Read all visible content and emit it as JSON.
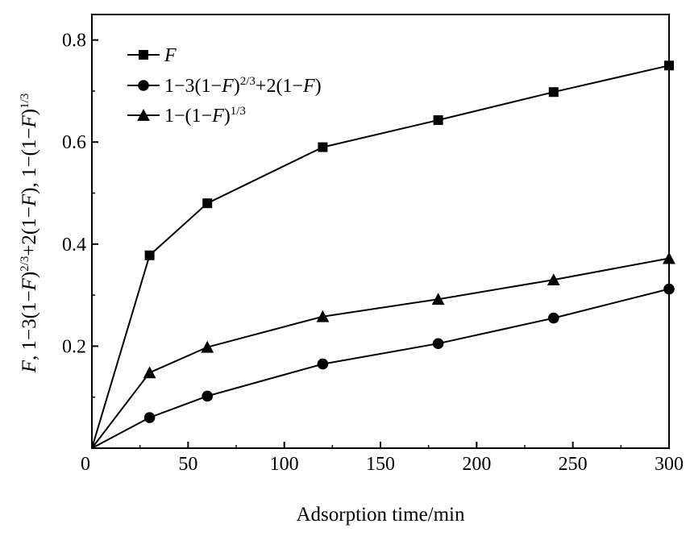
{
  "chart_data": {
    "type": "line",
    "title": "",
    "xlabel": "Adsorption time/min",
    "ylabel_parts": [
      {
        "text": "F",
        "italic": true,
        "sup": false
      },
      {
        "text": ", 1−3(1−",
        "italic": false,
        "sup": false
      },
      {
        "text": "F",
        "italic": true,
        "sup": false
      },
      {
        "text": ")",
        "italic": false,
        "sup": false
      },
      {
        "text": "2/3",
        "italic": false,
        "sup": true
      },
      {
        "text": "+2(1−",
        "italic": false,
        "sup": false
      },
      {
        "text": "F",
        "italic": true,
        "sup": false
      },
      {
        "text": "), 1−(1−",
        "italic": false,
        "sup": false
      },
      {
        "text": "F",
        "italic": true,
        "sup": false
      },
      {
        "text": ")",
        "italic": false,
        "sup": false
      },
      {
        "text": "1/3",
        "italic": false,
        "sup": true
      }
    ],
    "xlim": [
      0,
      300
    ],
    "ylim": [
      0,
      0.85
    ],
    "xticks": [
      0,
      50,
      100,
      150,
      200,
      250,
      300
    ],
    "yticks": [
      0,
      0.2,
      0.4,
      0.6,
      0.8
    ],
    "xtick_labels": [
      "0",
      "50",
      "100",
      "150",
      "200",
      "250",
      "300"
    ],
    "ytick_labels": [
      "0",
      "0.2",
      "0.4",
      "0.6",
      "0.8"
    ],
    "grid": false,
    "legend_position": "top-left",
    "series": [
      {
        "key": "F",
        "marker": "square",
        "color": "#000000",
        "legend_parts": [
          {
            "text": "F",
            "italic": true,
            "sup": false
          }
        ],
        "x": [
          0,
          30,
          60,
          120,
          180,
          240,
          300
        ],
        "y": [
          0,
          0.378,
          0.48,
          0.59,
          0.643,
          0.698,
          0.75
        ]
      },
      {
        "key": "ginstling",
        "marker": "circle",
        "color": "#000000",
        "legend_parts": [
          {
            "text": "1−3(1−",
            "italic": false,
            "sup": false
          },
          {
            "text": "F",
            "italic": true,
            "sup": false
          },
          {
            "text": ")",
            "italic": false,
            "sup": false
          },
          {
            "text": "2/3",
            "italic": false,
            "sup": true
          },
          {
            "text": "+2(1−",
            "italic": false,
            "sup": false
          },
          {
            "text": "F",
            "italic": true,
            "sup": false
          },
          {
            "text": ")",
            "italic": false,
            "sup": false
          }
        ],
        "x": [
          0,
          30,
          60,
          120,
          180,
          240,
          300
        ],
        "y": [
          0,
          0.06,
          0.102,
          0.165,
          0.205,
          0.255,
          0.312
        ]
      },
      {
        "key": "shrinking-core",
        "marker": "triangle",
        "color": "#000000",
        "legend_parts": [
          {
            "text": "1−(1−",
            "italic": false,
            "sup": false
          },
          {
            "text": "F",
            "italic": true,
            "sup": false
          },
          {
            "text": ")",
            "italic": false,
            "sup": false
          },
          {
            "text": "1/3",
            "italic": false,
            "sup": true
          }
        ],
        "x": [
          0,
          30,
          60,
          120,
          180,
          240,
          300
        ],
        "y": [
          0,
          0.148,
          0.198,
          0.258,
          0.292,
          0.33,
          0.372
        ]
      }
    ]
  }
}
